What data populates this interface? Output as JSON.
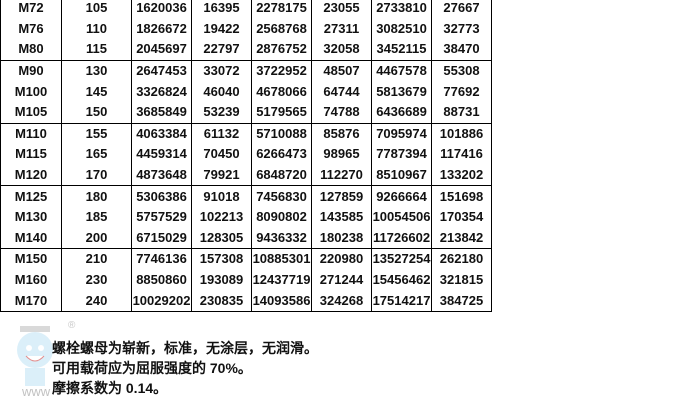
{
  "table": {
    "rows": [
      [
        "M72",
        "105",
        "1620036",
        "16395",
        "2278175",
        "23055",
        "2733810",
        "27667"
      ],
      [
        "M76",
        "110",
        "1826672",
        "19422",
        "2568768",
        "27311",
        "3082510",
        "32773"
      ],
      [
        "M80",
        "115",
        "2045697",
        "22797",
        "2876752",
        "32058",
        "3452115",
        "38470"
      ],
      [
        "M90",
        "130",
        "2647453",
        "33072",
        "3722952",
        "48507",
        "4467578",
        "55308"
      ],
      [
        "M100",
        "145",
        "3326824",
        "46040",
        "4678066",
        "64744",
        "5813679",
        "77692"
      ],
      [
        "M105",
        "150",
        "3685849",
        "53239",
        "5179565",
        "74788",
        "6436689",
        "88731"
      ],
      [
        "M110",
        "155",
        "4063384",
        "61132",
        "5710088",
        "85876",
        "7095974",
        "101886"
      ],
      [
        "M115",
        "165",
        "4459314",
        "70450",
        "6266473",
        "98965",
        "7787394",
        "117416"
      ],
      [
        "M120",
        "170",
        "4873648",
        "79921",
        "6848720",
        "112270",
        "8510967",
        "133202"
      ],
      [
        "M125",
        "180",
        "5306386",
        "91018",
        "7456830",
        "127859",
        "9266664",
        "151698"
      ],
      [
        "M130",
        "185",
        "5757529",
        "102213",
        "8090802",
        "143585",
        "10054506",
        "170354"
      ],
      [
        "M140",
        "200",
        "6715029",
        "128305",
        "9436332",
        "180238",
        "11726602",
        "213842"
      ],
      [
        "M150",
        "210",
        "7746136",
        "157308",
        "10885301",
        "220980",
        "13527254",
        "262180"
      ],
      [
        "M160",
        "230",
        "8850860",
        "193089",
        "12437719",
        "271244",
        "15456462",
        "321815"
      ],
      [
        "M170",
        "240",
        "10029202",
        "230835",
        "14093586",
        "324268",
        "17514217",
        "384725"
      ]
    ]
  },
  "notes": [
    "螺栓螺母为崭新，标准，无涂层，无润滑。",
    "可用载荷应为屈服强度的 70%。",
    "摩擦系数为 0.14。"
  ],
  "watermark": {
    "icon": "mascot-logo",
    "text": "www",
    "mark": "®"
  }
}
